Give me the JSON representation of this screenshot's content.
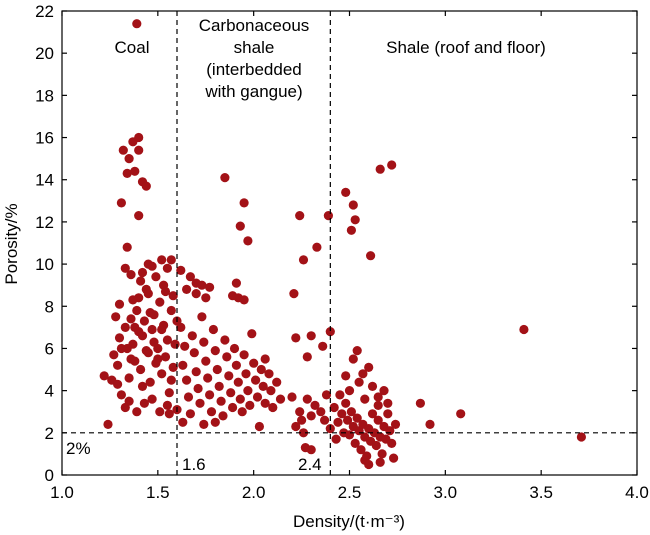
{
  "chart_data": {
    "type": "scatter",
    "xlabel": "Density/(t·m⁻³)",
    "ylabel": "Porosity/%",
    "xlim": [
      1.0,
      4.0
    ],
    "ylim": [
      0,
      22
    ],
    "xticks": [
      "1.0",
      "1.5",
      "2.0",
      "2.5",
      "3.0",
      "3.5",
      "4.0"
    ],
    "yticks": [
      "0",
      "2",
      "4",
      "6",
      "8",
      "10",
      "12",
      "14",
      "16",
      "18",
      "20",
      "22"
    ],
    "grid": false,
    "marker_color": "#a31217",
    "reference_lines": {
      "density_1": 1.6,
      "density_2": 2.4,
      "porosity": 2
    },
    "zone_labels": {
      "coal": "Coal",
      "carbonaceous": [
        "Carbonaceous",
        "shale",
        "(interbedded",
        "with gangue)"
      ],
      "shale": "Shale (roof and floor)"
    },
    "line_labels": {
      "porosity_2": "2%",
      "density_16": "1.6",
      "density_24": "2.4"
    },
    "points": [
      [
        1.39,
        21.4
      ],
      [
        1.4,
        16.0
      ],
      [
        1.37,
        15.8
      ],
      [
        1.4,
        15.4
      ],
      [
        1.32,
        15.4
      ],
      [
        1.35,
        15.0
      ],
      [
        1.38,
        14.4
      ],
      [
        1.34,
        14.3
      ],
      [
        1.42,
        13.9
      ],
      [
        1.44,
        13.7
      ],
      [
        1.31,
        12.9
      ],
      [
        1.4,
        12.3
      ],
      [
        1.34,
        10.8
      ],
      [
        1.45,
        10.0
      ],
      [
        1.33,
        9.8
      ],
      [
        1.47,
        9.9
      ],
      [
        1.55,
        9.8
      ],
      [
        1.57,
        10.2
      ],
      [
        1.52,
        10.2
      ],
      [
        1.36,
        9.5
      ],
      [
        1.42,
        9.6
      ],
      [
        1.85,
        14.1
      ],
      [
        1.95,
        12.9
      ],
      [
        1.97,
        11.1
      ],
      [
        1.93,
        11.8
      ],
      [
        1.91,
        9.1
      ],
      [
        1.89,
        8.5
      ],
      [
        1.92,
        8.4
      ],
      [
        1.95,
        8.3
      ],
      [
        1.7,
        9.1
      ],
      [
        1.73,
        9.0
      ],
      [
        1.77,
        8.9
      ],
      [
        1.65,
        8.8
      ],
      [
        1.62,
        9.7
      ],
      [
        1.67,
        9.4
      ],
      [
        1.7,
        8.6
      ],
      [
        1.75,
        8.4
      ],
      [
        2.24,
        12.3
      ],
      [
        2.33,
        10.8
      ],
      [
        2.26,
        10.2
      ],
      [
        2.39,
        12.3
      ],
      [
        2.21,
        8.6
      ],
      [
        2.4,
        6.8
      ],
      [
        2.3,
        6.6
      ],
      [
        2.22,
        6.5
      ],
      [
        2.36,
        6.1
      ],
      [
        2.28,
        5.6
      ],
      [
        2.48,
        13.4
      ],
      [
        2.52,
        12.8
      ],
      [
        2.53,
        12.1
      ],
      [
        2.51,
        11.6
      ],
      [
        2.61,
        10.4
      ],
      [
        2.66,
        14.5
      ],
      [
        2.72,
        14.7
      ],
      [
        3.41,
        6.9
      ],
      [
        3.08,
        2.9
      ],
      [
        2.87,
        3.4
      ],
      [
        2.92,
        2.4
      ],
      [
        3.71,
        1.8
      ],
      [
        1.22,
        4.7
      ],
      [
        1.24,
        2.4
      ],
      [
        1.26,
        4.5
      ],
      [
        1.29,
        5.2
      ],
      [
        1.3,
        6.5
      ],
      [
        1.28,
        7.5
      ],
      [
        1.27,
        5.7
      ],
      [
        1.3,
        8.1
      ],
      [
        1.31,
        3.8
      ],
      [
        1.33,
        3.2
      ],
      [
        1.35,
        4.6
      ],
      [
        1.36,
        5.5
      ],
      [
        1.37,
        6.2
      ],
      [
        1.38,
        7.0
      ],
      [
        1.39,
        7.8
      ],
      [
        1.4,
        8.4
      ],
      [
        1.41,
        5.0
      ],
      [
        1.42,
        6.6
      ],
      [
        1.43,
        7.3
      ],
      [
        1.44,
        8.8
      ],
      [
        1.45,
        5.8
      ],
      [
        1.46,
        4.4
      ],
      [
        1.47,
        6.9
      ],
      [
        1.48,
        7.6
      ],
      [
        1.49,
        5.3
      ],
      [
        1.5,
        6.0
      ],
      [
        1.51,
        8.2
      ],
      [
        1.52,
        4.8
      ],
      [
        1.53,
        7.1
      ],
      [
        1.54,
        5.6
      ],
      [
        1.55,
        6.4
      ],
      [
        1.56,
        3.9
      ],
      [
        1.57,
        7.8
      ],
      [
        1.58,
        5.1
      ],
      [
        1.34,
        6.0
      ],
      [
        1.36,
        7.4
      ],
      [
        1.38,
        5.4
      ],
      [
        1.4,
        6.8
      ],
      [
        1.42,
        4.2
      ],
      [
        1.44,
        5.9
      ],
      [
        1.46,
        7.7
      ],
      [
        1.48,
        6.3
      ],
      [
        1.5,
        5.5
      ],
      [
        1.52,
        6.9
      ],
      [
        1.43,
        3.4
      ],
      [
        1.47,
        3.6
      ],
      [
        1.51,
        3.0
      ],
      [
        1.55,
        3.3
      ],
      [
        1.39,
        3.0
      ],
      [
        1.35,
        3.5
      ],
      [
        1.41,
        9.2
      ],
      [
        1.49,
        9.4
      ],
      [
        1.53,
        9.0
      ],
      [
        1.45,
        8.6
      ],
      [
        1.37,
        8.3
      ],
      [
        1.33,
        7.0
      ],
      [
        1.31,
        6.0
      ],
      [
        1.29,
        4.3
      ],
      [
        1.57,
        4.5
      ],
      [
        1.59,
        6.2
      ],
      [
        1.6,
        7.3
      ],
      [
        1.58,
        8.5
      ],
      [
        1.54,
        8.7
      ],
      [
        1.56,
        2.9
      ],
      [
        1.6,
        3.1
      ],
      [
        1.62,
        7.0
      ],
      [
        1.64,
        6.1
      ],
      [
        1.63,
        5.2
      ],
      [
        1.65,
        4.5
      ],
      [
        1.66,
        3.7
      ],
      [
        1.67,
        2.9
      ],
      [
        1.68,
        6.6
      ],
      [
        1.69,
        5.8
      ],
      [
        1.7,
        4.9
      ],
      [
        1.71,
        4.1
      ],
      [
        1.72,
        3.4
      ],
      [
        1.73,
        7.5
      ],
      [
        1.74,
        6.3
      ],
      [
        1.75,
        5.4
      ],
      [
        1.76,
        4.6
      ],
      [
        1.77,
        3.8
      ],
      [
        1.78,
        3.0
      ],
      [
        1.79,
        6.9
      ],
      [
        1.8,
        5.9
      ],
      [
        1.81,
        5.0
      ],
      [
        1.82,
        4.2
      ],
      [
        1.83,
        3.5
      ],
      [
        1.84,
        2.8
      ],
      [
        1.85,
        6.4
      ],
      [
        1.86,
        5.6
      ],
      [
        1.87,
        4.7
      ],
      [
        1.88,
        3.9
      ],
      [
        1.89,
        3.2
      ],
      [
        1.9,
        6.0
      ],
      [
        1.91,
        5.2
      ],
      [
        1.92,
        4.4
      ],
      [
        1.93,
        3.6
      ],
      [
        1.94,
        3.0
      ],
      [
        1.95,
        5.7
      ],
      [
        1.96,
        4.8
      ],
      [
        1.97,
        4.0
      ],
      [
        1.98,
        3.3
      ],
      [
        1.99,
        6.7
      ],
      [
        2.0,
        5.3
      ],
      [
        2.01,
        4.5
      ],
      [
        2.02,
        3.7
      ],
      [
        2.04,
        5.0
      ],
      [
        2.05,
        4.2
      ],
      [
        2.06,
        3.4
      ],
      [
        2.08,
        4.8
      ],
      [
        2.09,
        4.0
      ],
      [
        2.1,
        3.2
      ],
      [
        2.12,
        4.4
      ],
      [
        2.14,
        3.6
      ],
      [
        2.06,
        5.5
      ],
      [
        2.03,
        2.3
      ],
      [
        1.74,
        2.4
      ],
      [
        1.8,
        2.5
      ],
      [
        1.63,
        2.5
      ],
      [
        2.22,
        2.3
      ],
      [
        2.26,
        2.0
      ],
      [
        2.2,
        3.7
      ],
      [
        2.24,
        3.0
      ],
      [
        2.28,
        3.6
      ],
      [
        2.3,
        2.8
      ],
      [
        2.32,
        3.3
      ],
      [
        2.25,
        2.6
      ],
      [
        2.35,
        3.0
      ],
      [
        2.37,
        2.6
      ],
      [
        2.38,
        3.8
      ],
      [
        2.3,
        1.2
      ],
      [
        2.27,
        1.3
      ],
      [
        2.42,
        3.2
      ],
      [
        2.44,
        2.5
      ],
      [
        2.45,
        3.8
      ],
      [
        2.46,
        2.9
      ],
      [
        2.47,
        2.0
      ],
      [
        2.48,
        3.4
      ],
      [
        2.49,
        2.6
      ],
      [
        2.5,
        1.9
      ],
      [
        2.51,
        3.0
      ],
      [
        2.52,
        2.3
      ],
      [
        2.53,
        1.5
      ],
      [
        2.54,
        2.7
      ],
      [
        2.55,
        2.1
      ],
      [
        2.56,
        1.2
      ],
      [
        2.57,
        2.4
      ],
      [
        2.58,
        1.8
      ],
      [
        2.59,
        0.9
      ],
      [
        2.6,
        2.2
      ],
      [
        2.61,
        1.6
      ],
      [
        2.62,
        2.9
      ],
      [
        2.63,
        2.0
      ],
      [
        2.64,
        1.4
      ],
      [
        2.65,
        2.6
      ],
      [
        2.66,
        1.8
      ],
      [
        2.67,
        1.0
      ],
      [
        2.68,
        2.3
      ],
      [
        2.69,
        1.7
      ],
      [
        2.7,
        2.9
      ],
      [
        2.71,
        2.1
      ],
      [
        2.72,
        1.5
      ],
      [
        2.74,
        2.4
      ],
      [
        2.5,
        4.0
      ],
      [
        2.55,
        4.4
      ],
      [
        2.58,
        3.6
      ],
      [
        2.62,
        4.2
      ],
      [
        2.65,
        3.3
      ],
      [
        2.68,
        4.0
      ],
      [
        2.52,
        5.5
      ],
      [
        2.6,
        5.1
      ],
      [
        2.57,
        4.8
      ],
      [
        2.48,
        4.7
      ],
      [
        2.54,
        5.9
      ],
      [
        2.65,
        3.7
      ],
      [
        2.7,
        3.4
      ],
      [
        2.73,
        0.8
      ],
      [
        2.6,
        0.5
      ],
      [
        2.58,
        0.7
      ],
      [
        2.66,
        0.6
      ],
      [
        2.43,
        1.7
      ],
      [
        2.4,
        2.2
      ]
    ]
  }
}
